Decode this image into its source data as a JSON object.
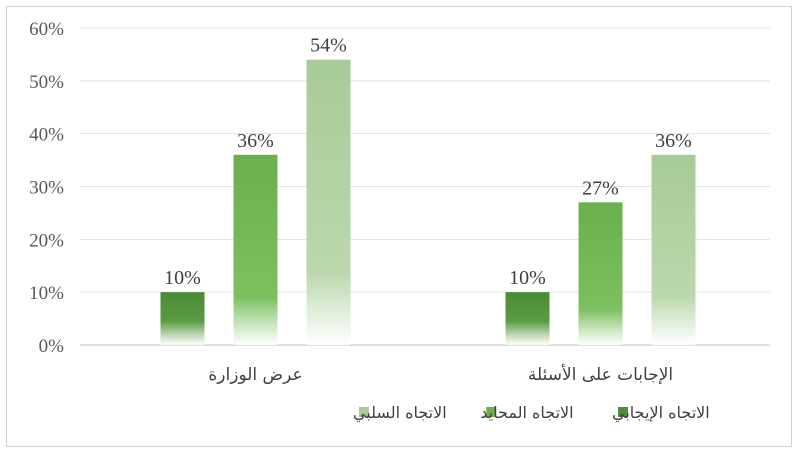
{
  "chart_data": {
    "type": "bar",
    "categories": [
      "عرض الوزارة",
      "الإجابات على الأسئلة"
    ],
    "series": [
      {
        "name": "الاتجاه الإيجابي",
        "values": [
          10,
          10
        ],
        "labels": [
          "10%",
          "10%"
        ],
        "color": "#4e8f3a"
      },
      {
        "name": "الاتجاه المحايد",
        "values": [
          36,
          27
        ],
        "labels": [
          "36%",
          "27%"
        ],
        "color": "#6ab04c"
      },
      {
        "name": "الاتجاه السلبي",
        "values": [
          54,
          36
        ],
        "labels": [
          "54%",
          "36%"
        ],
        "color": "#a8cc98"
      }
    ],
    "yticks": [
      "0%",
      "10%",
      "20%",
      "30%",
      "40%",
      "50%",
      "60%"
    ],
    "ylim": [
      0,
      60
    ],
    "grid": true,
    "legend": "bottom"
  }
}
